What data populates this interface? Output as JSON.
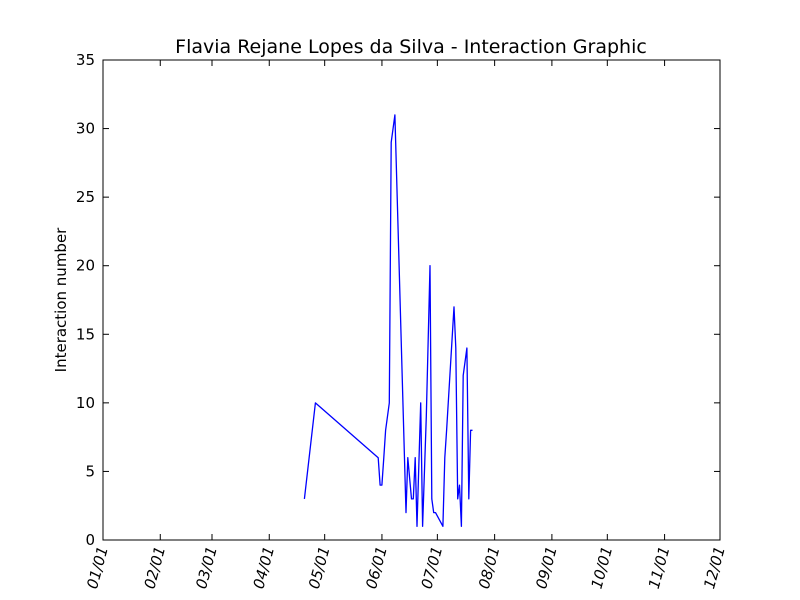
{
  "chart_data": {
    "type": "line",
    "title": "Flavia Rejane Lopes da Silva - Interaction Graphic",
    "xlabel": "",
    "ylabel": "Interaction number",
    "ylim": [
      0,
      35
    ],
    "yticks": [
      "0",
      "5",
      "10",
      "15",
      "20",
      "25",
      "30",
      "35"
    ],
    "xlim": [
      "01/01",
      "12/01"
    ],
    "xticks": [
      "01/01",
      "02/01",
      "03/01",
      "04/01",
      "05/01",
      "06/01",
      "07/01",
      "08/01",
      "09/01",
      "10/01",
      "11/01",
      "12/01"
    ],
    "grid": false,
    "line_color": "#0000ff",
    "series": [
      {
        "x": [
          "04/20",
          "04/26",
          "05/30",
          "05/31",
          "06/01",
          "06/02",
          "06/03",
          "06/05",
          "06/06",
          "06/08",
          "06/14",
          "06/15",
          "06/17",
          "06/18",
          "06/19",
          "06/20",
          "06/22",
          "06/23",
          "06/25",
          "06/27",
          "06/28",
          "06/29",
          "06/30",
          "07/04",
          "07/05",
          "07/06",
          "07/10",
          "07/11",
          "07/12",
          "07/13",
          "07/14",
          "07/15",
          "07/17",
          "07/18",
          "07/19",
          "07/20"
        ],
        "values": [
          3,
          10,
          6,
          4,
          4,
          6,
          8,
          10,
          29,
          31,
          2,
          6,
          3,
          3,
          6,
          1,
          10,
          1,
          9,
          20,
          3,
          2,
          2,
          1,
          6,
          8,
          17,
          14,
          3,
          4,
          1,
          12,
          14,
          3,
          8,
          8
        ]
      }
    ]
  }
}
